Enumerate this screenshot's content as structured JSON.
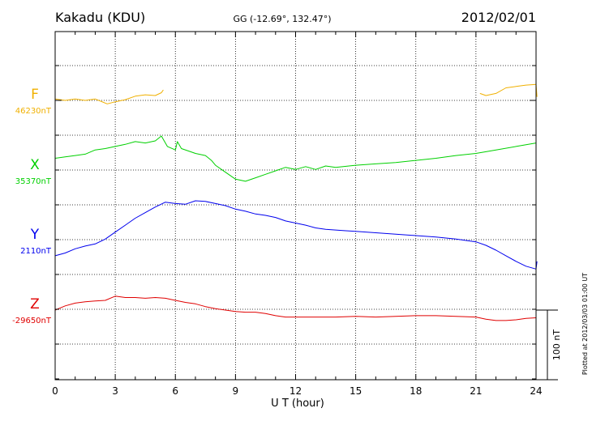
{
  "header": {
    "station": "Kakadu (KDU)",
    "coords": "GG (-12.69°, 132.47°)",
    "date": "2012/02/01"
  },
  "footer": {
    "plotted": "Plotted at 2012/03/03 01:00 UT"
  },
  "chart_data": {
    "type": "line",
    "xlabel": "U T (hour)",
    "xlim": [
      0,
      24
    ],
    "xticks": [
      0,
      3,
      6,
      9,
      12,
      15,
      18,
      21,
      24
    ],
    "scale_bar_label": "100 nT",
    "scale_bar_nT": 100,
    "grid": true,
    "series": [
      {
        "name": "F",
        "baseline_label": "46230nT",
        "baseline_nT": 46230,
        "color": "#f0b000",
        "segments": [
          [
            [
              0,
              46232
            ],
            [
              0.5,
              46230
            ],
            [
              1,
              46232
            ],
            [
              1.5,
              46230
            ],
            [
              2,
              46232
            ],
            [
              2.6,
              46225
            ],
            [
              3,
              46228
            ],
            [
              3.5,
              46231
            ],
            [
              4,
              46236
            ],
            [
              4.5,
              46238
            ],
            [
              5,
              46237
            ],
            [
              5.3,
              46241
            ],
            [
              5.4,
              46245
            ]
          ],
          [
            [
              21.2,
              46240
            ],
            [
              21.5,
              46237
            ],
            [
              22,
              46240
            ],
            [
              22.5,
              46248
            ],
            [
              23,
              46250
            ],
            [
              23.5,
              46252
            ],
            [
              24,
              46253
            ],
            [
              24.05,
              46235
            ]
          ]
        ]
      },
      {
        "name": "X",
        "baseline_label": "35370nT",
        "baseline_nT": 35370,
        "color": "#00d000",
        "segments": [
          [
            [
              0,
              35388
            ],
            [
              0.5,
              35390
            ],
            [
              1,
              35392
            ],
            [
              1.5,
              35394
            ],
            [
              2,
              35400
            ],
            [
              2.5,
              35402
            ],
            [
              3,
              35405
            ],
            [
              3.5,
              35408
            ],
            [
              4,
              35412
            ],
            [
              4.5,
              35410
            ],
            [
              5,
              35413
            ],
            [
              5.3,
              35420
            ],
            [
              5.6,
              35405
            ],
            [
              6,
              35400
            ],
            [
              6.1,
              35412
            ],
            [
              6.3,
              35402
            ],
            [
              6.7,
              35398
            ],
            [
              7,
              35395
            ],
            [
              7.5,
              35392
            ],
            [
              7.8,
              35385
            ],
            [
              8,
              35378
            ],
            [
              8.5,
              35368
            ],
            [
              9,
              35358
            ],
            [
              9.5,
              35355
            ],
            [
              10,
              35360
            ],
            [
              10.5,
              35365
            ],
            [
              11,
              35370
            ],
            [
              11.5,
              35375
            ],
            [
              12,
              35372
            ],
            [
              12.5,
              35376
            ],
            [
              13,
              35372
            ],
            [
              13.5,
              35377
            ],
            [
              14,
              35375
            ],
            [
              15,
              35378
            ],
            [
              16,
              35380
            ],
            [
              17,
              35382
            ],
            [
              18,
              35385
            ],
            [
              19,
              35388
            ],
            [
              20,
              35392
            ],
            [
              21,
              35395
            ],
            [
              22,
              35400
            ],
            [
              23,
              35405
            ],
            [
              24,
              35410
            ]
          ]
        ]
      },
      {
        "name": "Y",
        "baseline_label": "2110nT",
        "baseline_nT": 2110,
        "color": "#0000ee",
        "segments": [
          [
            [
              0,
              2088
            ],
            [
              0.5,
              2092
            ],
            [
              1,
              2098
            ],
            [
              1.5,
              2102
            ],
            [
              2,
              2105
            ],
            [
              2.5,
              2112
            ],
            [
              3,
              2122
            ],
            [
              3.5,
              2132
            ],
            [
              4,
              2142
            ],
            [
              4.5,
              2150
            ],
            [
              5,
              2158
            ],
            [
              5.5,
              2165
            ],
            [
              6,
              2163
            ],
            [
              6.5,
              2162
            ],
            [
              7,
              2167
            ],
            [
              7.5,
              2166
            ],
            [
              8,
              2163
            ],
            [
              8.5,
              2160
            ],
            [
              9,
              2155
            ],
            [
              9.5,
              2152
            ],
            [
              10,
              2148
            ],
            [
              10.5,
              2146
            ],
            [
              11,
              2143
            ],
            [
              11.5,
              2138
            ],
            [
              12,
              2135
            ],
            [
              12.5,
              2132
            ],
            [
              13,
              2128
            ],
            [
              13.5,
              2126
            ],
            [
              14,
              2125
            ],
            [
              14.5,
              2124
            ],
            [
              15,
              2123
            ],
            [
              16,
              2121
            ],
            [
              17,
              2119
            ],
            [
              18,
              2117
            ],
            [
              19,
              2115
            ],
            [
              20,
              2112
            ],
            [
              21,
              2108
            ],
            [
              21.5,
              2103
            ],
            [
              22,
              2096
            ],
            [
              22.5,
              2088
            ],
            [
              23,
              2080
            ],
            [
              23.5,
              2073
            ],
            [
              24,
              2069
            ],
            [
              24.05,
              2080
            ]
          ]
        ]
      },
      {
        "name": "Z",
        "baseline_label": "-29650nT",
        "baseline_nT": -29650,
        "color": "#e00000",
        "segments": [
          [
            [
              0,
              -29650
            ],
            [
              0.5,
              -29644
            ],
            [
              1,
              -29640
            ],
            [
              1.5,
              -29638
            ],
            [
              2,
              -29637
            ],
            [
              2.5,
              -29636
            ],
            [
              3,
              -29630
            ],
            [
              3.5,
              -29632
            ],
            [
              4,
              -29632
            ],
            [
              4.5,
              -29633
            ],
            [
              5,
              -29632
            ],
            [
              5.5,
              -29633
            ],
            [
              6,
              -29636
            ],
            [
              6.5,
              -29639
            ],
            [
              7,
              -29641
            ],
            [
              7.5,
              -29645
            ],
            [
              8,
              -29648
            ],
            [
              8.5,
              -29650
            ],
            [
              9,
              -29652
            ],
            [
              9.5,
              -29653
            ],
            [
              10,
              -29653
            ],
            [
              10.5,
              -29655
            ],
            [
              11,
              -29658
            ],
            [
              11.5,
              -29660
            ],
            [
              12,
              -29660
            ],
            [
              13,
              -29660
            ],
            [
              14,
              -29660
            ],
            [
              15,
              -29659
            ],
            [
              16,
              -29660
            ],
            [
              17,
              -29659
            ],
            [
              18,
              -29658
            ],
            [
              19,
              -29658
            ],
            [
              20,
              -29659
            ],
            [
              21,
              -29660
            ],
            [
              21.5,
              -29663
            ],
            [
              22,
              -29665
            ],
            [
              22.5,
              -29665
            ],
            [
              23,
              -29664
            ],
            [
              23.5,
              -29662
            ],
            [
              24,
              -29661
            ]
          ]
        ]
      }
    ]
  }
}
